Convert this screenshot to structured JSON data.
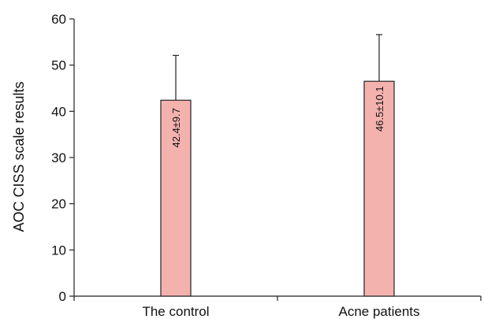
{
  "chart_data": {
    "type": "bar",
    "categories": [
      "The control",
      "Acne patients"
    ],
    "values": [
      42.4,
      46.5
    ],
    "errors": [
      9.7,
      10.1
    ],
    "data_labels": [
      "42.4±9.7",
      "46.5±10.1"
    ],
    "title": "",
    "xlabel": "",
    "ylabel": "AOC CISS scale results",
    "ylim": [
      0,
      60
    ],
    "yticks": [
      0,
      10,
      20,
      30,
      40,
      50,
      60
    ],
    "grid": false,
    "legend": "none",
    "colors": {
      "bar_fill": "#f4b2ae",
      "bar_stroke": "#222222",
      "axis": "#222222",
      "error_bar": "#222222"
    }
  }
}
